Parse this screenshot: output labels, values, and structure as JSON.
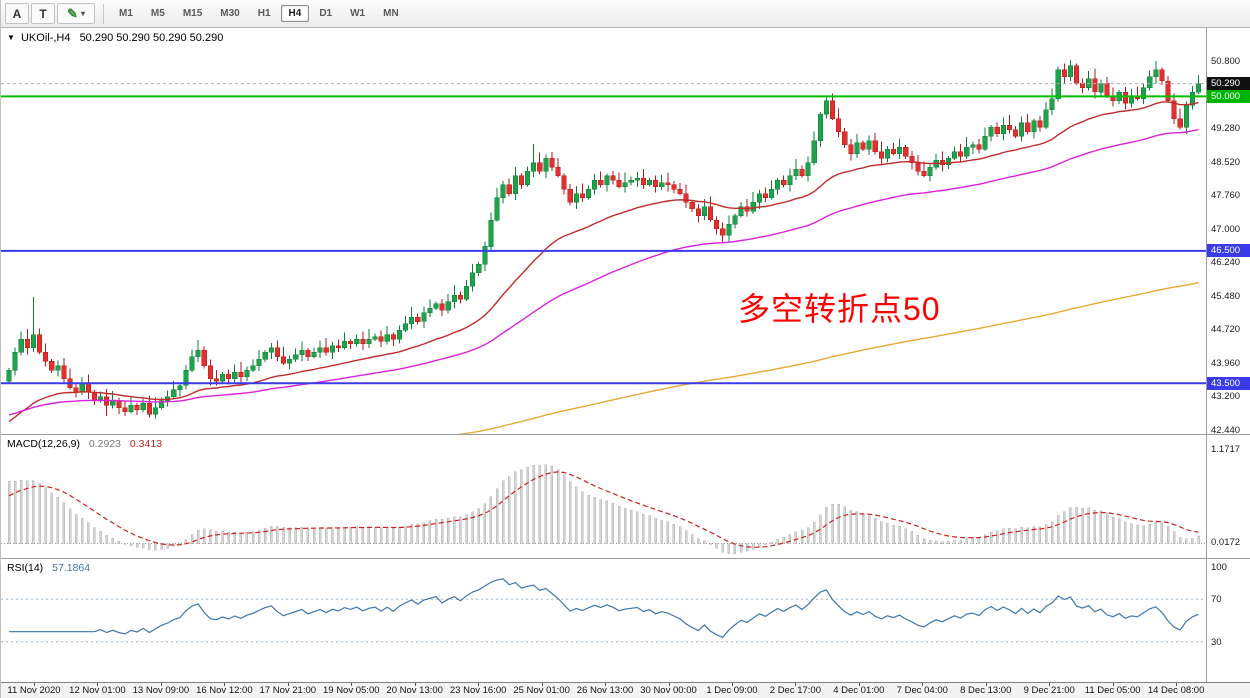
{
  "toolbar": {
    "tool_a": "A",
    "tool_t": "T",
    "draw_icon": "✎",
    "dropdown_icon": "▾",
    "timeframes": [
      "M1",
      "M5",
      "M15",
      "M30",
      "H1",
      "H4",
      "D1",
      "W1",
      "MN"
    ],
    "active_timeframe": "H4"
  },
  "chart_header": {
    "collapse_icon": "▼",
    "symbol_label": "UKOil-,H4",
    "ohlc": "50.290 50.290 50.290 50.290"
  },
  "annotation": {
    "text": "多空转折点50",
    "color": "#FF0000"
  },
  "price_axis": {
    "ticks": [
      "50.800",
      "49.280",
      "48.520",
      "47.760",
      "47.000",
      "46.240",
      "45.480",
      "44.720",
      "43.960",
      "43.200",
      "42.440"
    ],
    "badges": [
      {
        "text": "50.290",
        "price": 50.29,
        "bg": "#101010"
      },
      {
        "text": "50.000",
        "price": 50.0,
        "bg": "#00B400"
      },
      {
        "text": "46.500",
        "price": 46.5,
        "bg": "#3A3AE8"
      },
      {
        "text": "43.500",
        "price": 43.5,
        "bg": "#3A3AE8"
      }
    ]
  },
  "time_axis": {
    "labels": [
      "11 Nov 2020",
      "12 Nov 01:00",
      "13 Nov 09:00",
      "16 Nov 12:00",
      "17 Nov 21:00",
      "19 Nov 05:00",
      "20 Nov 13:00",
      "23 Nov 16:00",
      "25 Nov 01:00",
      "26 Nov 13:00",
      "30 Nov 00:00",
      "1 Dec 09:00",
      "2 Dec 17:00",
      "4 Dec 01:00",
      "7 Dec 04:00",
      "8 Dec 13:00",
      "9 Dec 21:00",
      "11 Dec 05:00",
      "14 Dec 08:00"
    ]
  },
  "indicators": {
    "macd": {
      "label": "MACD(12,26,9)",
      "value_main": "0.2923",
      "value_signal": "0.3413",
      "scale_ticks": [
        {
          "text": "1.1717",
          "value": 1.1717
        },
        {
          "text": "0.0172",
          "value": 0.0172
        }
      ],
      "ylim": [
        -0.18,
        1.35
      ],
      "colors": {
        "histogram": "#d4d4d4",
        "histogram_border": "#a8a8a8",
        "signal": "#CC2222"
      }
    },
    "rsi": {
      "label": "RSI(14)",
      "value": "57.1864",
      "levels": [
        70,
        30
      ],
      "scale_ticks": [
        {
          "text": "100",
          "value": 100
        },
        {
          "text": "70",
          "value": 70
        },
        {
          "text": "30",
          "value": 30
        }
      ],
      "ylim": [
        -8,
        108
      ],
      "color": "#3E77AD",
      "level_color": "#9DB8D2"
    }
  },
  "chart_data": {
    "type": "candlestick",
    "symbol": "UKOil",
    "timeframe": "H4",
    "last_price": 50.29,
    "ylim": [
      42.35,
      51.55
    ],
    "hlines": [
      {
        "price": 50.0,
        "color": "#00BE00"
      },
      {
        "price": 46.5,
        "color": "#3A3AE8"
      },
      {
        "price": 43.5,
        "color": "#3A3AE8"
      }
    ],
    "colors": {
      "up": "#1FA24C",
      "up_border": "#0E7D36",
      "down": "#E03030",
      "down_border": "#B61A1A"
    },
    "moving_averages": [
      {
        "name": "fast",
        "color": "#C22B2B",
        "period": 30,
        "seed": 42.55
      },
      {
        "name": "mid",
        "color": "#DB22DB",
        "period": 70,
        "seed": 42.75
      },
      {
        "name": "slow",
        "color": "#E8A838",
        "period": 320,
        "seed": 41.3
      }
    ],
    "macd_seeds": {
      "ema12": 43.4,
      "ema26": 42.6,
      "signal": 0.55
    },
    "candles": {
      "open_first": 43.55,
      "closes": [
        43.8,
        44.2,
        44.5,
        44.3,
        44.6,
        44.2,
        44.0,
        43.8,
        43.9,
        43.6,
        43.4,
        43.3,
        43.5,
        43.3,
        43.1,
        43.2,
        43.0,
        43.1,
        42.95,
        42.85,
        43.0,
        42.9,
        43.05,
        42.8,
        42.95,
        43.1,
        43.2,
        43.35,
        43.45,
        43.8,
        44.1,
        44.25,
        43.9,
        43.6,
        43.55,
        43.7,
        43.6,
        43.75,
        43.65,
        43.8,
        43.9,
        44.05,
        44.2,
        44.3,
        44.1,
        43.95,
        44.05,
        44.15,
        44.25,
        44.1,
        44.2,
        44.3,
        44.2,
        44.35,
        44.3,
        44.45,
        44.4,
        44.5,
        44.4,
        44.5,
        44.55,
        44.45,
        44.6,
        44.5,
        44.7,
        44.85,
        45.0,
        44.9,
        45.1,
        45.2,
        45.3,
        45.15,
        45.35,
        45.5,
        45.4,
        45.7,
        46.0,
        46.2,
        46.6,
        47.2,
        47.7,
        48.0,
        47.8,
        48.2,
        48.0,
        48.3,
        48.5,
        48.3,
        48.6,
        48.4,
        48.2,
        47.9,
        47.6,
        47.8,
        47.7,
        47.9,
        48.1,
        48.0,
        48.2,
        48.1,
        47.95,
        48.05,
        48.1,
        48.15,
        48.0,
        48.1,
        47.95,
        48.05,
        48.0,
        47.9,
        47.8,
        47.6,
        47.45,
        47.3,
        47.5,
        47.2,
        47.0,
        46.85,
        47.1,
        47.3,
        47.5,
        47.4,
        47.6,
        47.8,
        47.7,
        47.9,
        48.1,
        48.0,
        48.2,
        48.35,
        48.2,
        48.5,
        49.0,
        49.6,
        49.9,
        49.5,
        49.2,
        48.9,
        48.7,
        48.95,
        48.8,
        49.0,
        48.75,
        48.6,
        48.8,
        48.7,
        48.85,
        48.65,
        48.5,
        48.3,
        48.2,
        48.4,
        48.55,
        48.45,
        48.6,
        48.75,
        48.65,
        48.85,
        48.9,
        48.8,
        49.1,
        49.3,
        49.15,
        49.35,
        49.25,
        49.1,
        49.4,
        49.2,
        49.45,
        49.3,
        49.7,
        49.95,
        50.6,
        50.45,
        50.7,
        50.3,
        50.2,
        50.4,
        50.1,
        50.3,
        50.0,
        49.9,
        50.1,
        49.85,
        50.0,
        49.95,
        50.2,
        50.45,
        50.6,
        50.35,
        49.9,
        49.5,
        49.3,
        49.8,
        50.1,
        50.29
      ],
      "wick_overrides": {
        "4": {
          "high": 45.45
        },
        "16": {
          "low": 42.76
        },
        "23": {
          "low": 42.72
        },
        "86": {
          "high": 48.92
        },
        "117": {
          "low": 46.7
        },
        "134": {
          "high": 49.97
        },
        "174": {
          "high": 50.82
        },
        "192": {
          "low": 49.25
        }
      }
    }
  }
}
